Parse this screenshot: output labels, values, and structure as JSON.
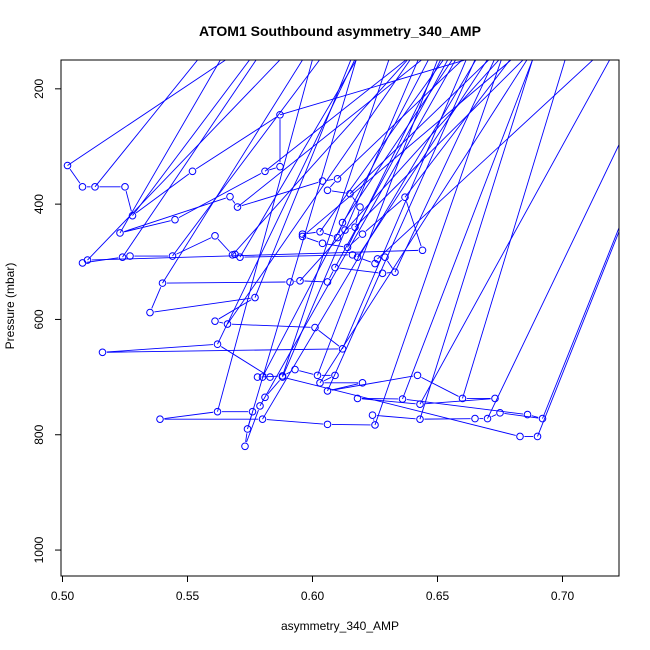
{
  "chart_data": {
    "type": "line",
    "title": "ATOM1 Southbound asymmetry_340_AMP",
    "xlabel": "asymmetry_340_AMP",
    "ylabel": "Pressure (mbar)",
    "xlim": [
      0.4994,
      0.7226
    ],
    "ylim": [
      1045,
      150
    ],
    "y_reversed": true,
    "x_ticks": [
      0.5,
      0.55,
      0.6,
      0.65,
      0.7
    ],
    "x_tick_labels": [
      "0.50",
      "0.55",
      "0.60",
      "0.65",
      "0.70"
    ],
    "y_ticks": [
      200,
      400,
      600,
      800,
      1000
    ],
    "y_tick_labels": [
      "200",
      "400",
      "600",
      "800",
      "1000"
    ],
    "series": [
      {
        "color": "#0000ff",
        "marker": "open-circle",
        "points": [
          [
            0.502,
            333
          ],
          [
            0.508,
            370
          ],
          [
            0.513,
            370
          ],
          [
            0.525,
            370
          ],
          [
            0.528,
            420
          ],
          [
            0.552,
            343
          ],
          [
            0.587,
            245
          ],
          [
            0.587,
            335
          ],
          [
            0.581,
            343
          ],
          [
            0.545,
            427
          ],
          [
            0.523,
            450
          ],
          [
            0.567,
            387
          ],
          [
            0.57,
            405
          ],
          [
            0.604,
            360
          ],
          [
            0.61,
            356
          ],
          [
            0.606,
            376
          ],
          [
            0.615,
            382
          ],
          [
            0.619,
            405
          ],
          [
            0.617,
            440
          ],
          [
            0.613,
            445
          ],
          [
            0.612,
            432
          ],
          [
            0.61,
            458
          ],
          [
            0.603,
            448
          ],
          [
            0.596,
            452
          ],
          [
            0.596,
            456
          ],
          [
            0.604,
            468
          ],
          [
            0.614,
            475
          ],
          [
            0.62,
            452
          ],
          [
            0.637,
            388
          ],
          [
            0.644,
            480
          ],
          [
            0.51,
            497
          ],
          [
            0.508,
            502
          ],
          [
            0.524,
            492
          ],
          [
            0.527,
            490
          ],
          [
            0.544,
            490
          ],
          [
            0.561,
            455
          ],
          [
            0.568,
            488
          ],
          [
            0.569,
            487
          ],
          [
            0.571,
            492
          ],
          [
            0.616,
            488
          ],
          [
            0.618,
            492
          ],
          [
            0.625,
            503
          ],
          [
            0.626,
            495
          ],
          [
            0.629,
            492
          ],
          [
            0.633,
            518
          ],
          [
            0.628,
            520
          ],
          [
            0.609,
            510
          ],
          [
            0.606,
            535
          ],
          [
            0.595,
            533
          ],
          [
            0.591,
            535
          ],
          [
            0.54,
            537
          ],
          [
            0.535,
            588
          ],
          [
            0.577,
            562
          ],
          [
            0.561,
            603
          ],
          [
            0.566,
            608
          ],
          [
            0.601,
            614
          ],
          [
            0.612,
            651
          ],
          [
            0.516,
            657
          ],
          [
            0.562,
            643
          ],
          [
            0.583,
            700
          ],
          [
            0.58,
            700
          ],
          [
            0.578,
            700
          ],
          [
            0.588,
            698
          ],
          [
            0.593,
            687
          ],
          [
            0.602,
            697
          ],
          [
            0.609,
            697
          ],
          [
            0.603,
            710
          ],
          [
            0.62,
            710
          ],
          [
            0.606,
            724
          ],
          [
            0.642,
            697
          ],
          [
            0.66,
            737
          ],
          [
            0.673,
            737
          ],
          [
            0.643,
            747
          ],
          [
            0.618,
            737
          ],
          [
            0.636,
            738
          ],
          [
            0.686,
            765
          ],
          [
            0.692,
            772
          ],
          [
            0.675,
            762
          ],
          [
            0.67,
            772
          ],
          [
            0.665,
            772
          ],
          [
            0.643,
            773
          ],
          [
            0.624,
            766
          ],
          [
            0.625,
            783
          ],
          [
            0.606,
            782
          ],
          [
            0.58,
            773
          ],
          [
            0.539,
            773
          ],
          [
            0.562,
            760
          ],
          [
            0.576,
            760
          ],
          [
            0.574,
            790
          ],
          [
            0.573,
            820
          ],
          [
            0.579,
            750
          ],
          [
            0.581,
            735
          ],
          [
            0.588,
            700
          ],
          [
            0.683,
            803
          ],
          [
            0.69,
            803
          ]
        ]
      }
    ]
  }
}
